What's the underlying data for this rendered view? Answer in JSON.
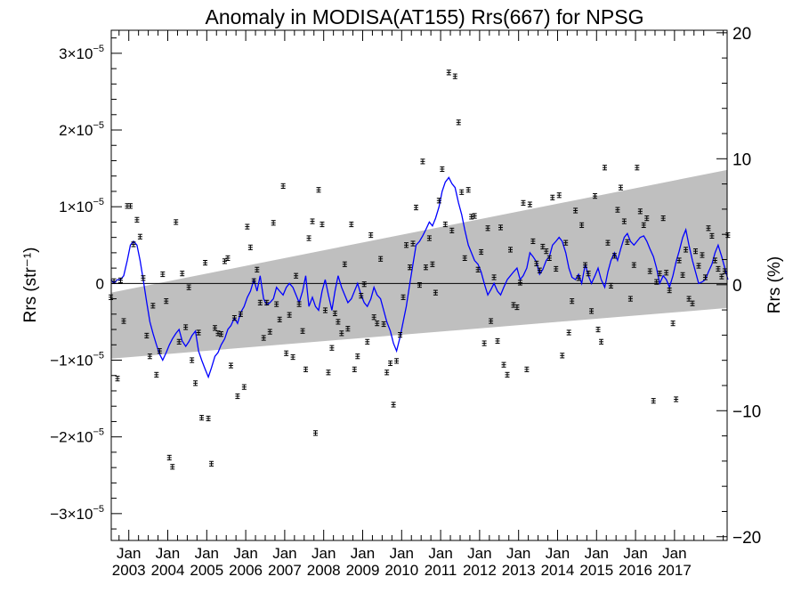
{
  "chart_data": {
    "type": "scatter",
    "title": "Anomaly in MODISA(AT155) Rrs(667) for NPSG",
    "ylabel_left": "Rrs (str⁻¹)",
    "ylabel_right": "Rrs (%)",
    "xlabel": "",
    "x_ticks": [
      {
        "top": "Jan",
        "bottom": "2003"
      },
      {
        "top": "Jan",
        "bottom": "2004"
      },
      {
        "top": "Jan",
        "bottom": "2005"
      },
      {
        "top": "Jan",
        "bottom": "2006"
      },
      {
        "top": "Jan",
        "bottom": "2007"
      },
      {
        "top": "Jan",
        "bottom": "2008"
      },
      {
        "top": "Jan",
        "bottom": "2009"
      },
      {
        "top": "Jan",
        "bottom": "2010"
      },
      {
        "top": "Jan",
        "bottom": "2011"
      },
      {
        "top": "Jan",
        "bottom": "2012"
      },
      {
        "top": "Jan",
        "bottom": "2013"
      },
      {
        "top": "Jan",
        "bottom": "2014"
      },
      {
        "top": "Jan",
        "bottom": "2015"
      },
      {
        "top": "Jan",
        "bottom": "2016"
      },
      {
        "top": "Jan",
        "bottom": "2017"
      }
    ],
    "x_range": [
      2002.55,
      2018.35
    ],
    "y_left_range": [
      -3.35e-05,
      3.3e-05
    ],
    "y_left_ticks": [
      {
        "value": 3e-05,
        "mant": "3×10",
        "exp": "−5"
      },
      {
        "value": 2e-05,
        "mant": "2×10",
        "exp": "−5"
      },
      {
        "value": 1e-05,
        "mant": "1×10",
        "exp": "−5"
      },
      {
        "value": 0,
        "mant": "0",
        "exp": ""
      },
      {
        "value": -1e-05,
        "mant": "−1×10",
        "exp": "−5"
      },
      {
        "value": -2e-05,
        "mant": "−2×10",
        "exp": "−5"
      },
      {
        "value": -3e-05,
        "mant": "−3×10",
        "exp": "−5"
      }
    ],
    "y_right_range": [
      -20.3,
      20.2
    ],
    "y_right_ticks": [
      {
        "value": 20,
        "label": "20"
      },
      {
        "value": 10,
        "label": "10"
      },
      {
        "value": 0,
        "label": "0"
      },
      {
        "value": -10,
        "label": "−10"
      },
      {
        "value": -20,
        "label": "−20"
      }
    ],
    "grid": false,
    "legend": "none",
    "colors": {
      "points": "#000000",
      "line": "#0000ff",
      "band": "#bfbfbf",
      "zero_line": "#000000"
    },
    "band": {
      "x": [
        2002.55,
        2018.35
      ],
      "upper": [
        -1.2e-06,
        1.48e-05
      ],
      "lower": [
        -9.8e-06,
        -3.2e-06
      ]
    },
    "series": [
      {
        "kind": "monthly_anomaly_points_with_error_bars",
        "x": [
          2002.54,
          2002.62,
          2002.71,
          2002.79,
          2002.87,
          2002.96,
          2003.04,
          2003.12,
          2003.21,
          2003.29,
          2003.37,
          2003.46,
          2003.54,
          2003.62,
          2003.71,
          2003.79,
          2003.87,
          2003.96,
          2004.04,
          2004.12,
          2004.21,
          2004.29,
          2004.37,
          2004.46,
          2004.54,
          2004.62,
          2004.71,
          2004.79,
          2004.87,
          2004.96,
          2005.04,
          2005.12,
          2005.21,
          2005.29,
          2005.37,
          2005.46,
          2005.54,
          2005.62,
          2005.71,
          2005.79,
          2005.87,
          2005.96,
          2006.04,
          2006.12,
          2006.21,
          2006.29,
          2006.37,
          2006.46,
          2006.54,
          2006.62,
          2006.71,
          2006.79,
          2006.87,
          2006.96,
          2007.04,
          2007.12,
          2007.21,
          2007.29,
          2007.37,
          2007.46,
          2007.54,
          2007.62,
          2007.71,
          2007.79,
          2007.87,
          2007.96,
          2008.04,
          2008.12,
          2008.21,
          2008.29,
          2008.37,
          2008.46,
          2008.54,
          2008.62,
          2008.71,
          2008.79,
          2008.87,
          2008.96,
          2009.04,
          2009.12,
          2009.21,
          2009.29,
          2009.37,
          2009.46,
          2009.54,
          2009.62,
          2009.71,
          2009.79,
          2009.87,
          2009.96,
          2010.04,
          2010.12,
          2010.21,
          2010.29,
          2010.37,
          2010.46,
          2010.54,
          2010.62,
          2010.71,
          2010.79,
          2010.87,
          2010.96,
          2011.04,
          2011.12,
          2011.21,
          2011.29,
          2011.37,
          2011.46,
          2011.54,
          2011.62,
          2011.71,
          2011.79,
          2011.87,
          2011.96,
          2012.04,
          2012.12,
          2012.21,
          2012.29,
          2012.37,
          2012.46,
          2012.54,
          2012.62,
          2012.71,
          2012.79,
          2012.87,
          2012.96,
          2013.04,
          2013.12,
          2013.21,
          2013.29,
          2013.37,
          2013.46,
          2013.54,
          2013.62,
          2013.71,
          2013.79,
          2013.87,
          2013.96,
          2014.04,
          2014.12,
          2014.21,
          2014.29,
          2014.37,
          2014.46,
          2014.54,
          2014.62,
          2014.71,
          2014.79,
          2014.87,
          2014.96,
          2015.04,
          2015.12,
          2015.21,
          2015.29,
          2015.37,
          2015.46,
          2015.54,
          2015.62,
          2015.71,
          2015.79,
          2015.87,
          2015.96,
          2016.04,
          2016.12,
          2016.21,
          2016.29,
          2016.37,
          2016.46,
          2016.54,
          2016.62,
          2016.71,
          2016.79,
          2016.87,
          2016.96,
          2017.04,
          2017.12,
          2017.21,
          2017.29,
          2017.37,
          2017.46,
          2017.54,
          2017.62,
          2017.71,
          2017.79,
          2017.87,
          2017.96,
          2018.04,
          2018.12,
          2018.21,
          2018.29,
          2018.37
        ],
        "y": [
          -0.18,
          0.03,
          -1.24,
          0.04,
          -0.49,
          1.01,
          1.01,
          0.51,
          0.83,
          0.61,
          0.07,
          -0.68,
          -0.95,
          -0.29,
          -1.19,
          -0.88,
          0.12,
          -0.23,
          -2.27,
          -2.39,
          0.8,
          -0.76,
          0.13,
          -0.57,
          -0.05,
          -1.0,
          -1.3,
          -0.64,
          -1.75,
          0.27,
          -1.76,
          -2.35,
          -0.58,
          -0.65,
          -0.66,
          0.29,
          0.33,
          -1.07,
          -0.45,
          -1.47,
          -0.4,
          -1.35,
          0.74,
          0.47,
          0.03,
          0.18,
          -0.25,
          -0.71,
          -0.25,
          -0.63,
          0.79,
          -0.27,
          -0.47,
          1.27,
          -0.91,
          -0.41,
          -0.96,
          0.1,
          -0.27,
          -0.62,
          -1.12,
          0.59,
          0.81,
          -1.95,
          1.22,
          0.77,
          -0.35,
          -1.16,
          -0.84,
          -0.39,
          -0.5,
          -0.65,
          0.25,
          -0.59,
          0.77,
          -1.12,
          -0.95,
          -0.16,
          -0.01,
          -0.76,
          0.63,
          -0.44,
          -0.52,
          0.32,
          -0.53,
          -1.16,
          -1.04,
          -1.58,
          -1.01,
          -0.67,
          -0.18,
          0.5,
          0.21,
          0.52,
          0.99,
          -0.02,
          1.59,
          0.21,
          0.59,
          0.25,
          -0.12,
          1.08,
          1.49,
          0.77,
          2.75,
          0.69,
          2.7,
          2.1,
          1.19,
          0.33,
          1.22,
          0.87,
          0.88,
          0.18,
          0.41,
          -0.78,
          0.72,
          -0.49,
          0.08,
          -0.75,
          0.73,
          -1.06,
          -1.19,
          0.44,
          -0.28,
          -0.31,
          0.01,
          1.05,
          -1.12,
          1.03,
          0.55,
          0.26,
          0.17,
          0.48,
          0.42,
          0.33,
          1.12,
          0.19,
          1.15,
          -0.94,
          0.53,
          -0.64,
          -0.23,
          0.95,
          0.07,
          0.76,
          0.24,
          0.13,
          -0.36,
          1.14,
          -0.6,
          -0.76,
          1.51,
          0.53,
          -0.03,
          0.36,
          0.96,
          1.25,
          0.81,
          0.54,
          -0.2,
          0.24,
          1.51,
          0.94,
          0.76,
          0.85,
          0.16,
          -1.53,
          0.02,
          0.13,
          0.85,
          0.14,
          -0.09,
          -0.52,
          -1.51,
          0.3,
          0.11,
          0.44,
          -0.2,
          -0.26,
          0.42,
          0.23,
          0.37,
          0.08,
          0.72,
          0.62,
          0.3,
          0.19,
          0.09,
          0.16,
          0.63
        ],
        "y_scale": 1e-05,
        "error": 0.03
      },
      {
        "kind": "smoothed_line",
        "x": [
          2002.54,
          2002.62,
          2002.71,
          2002.79,
          2002.87,
          2002.96,
          2003.04,
          2003.12,
          2003.21,
          2003.29,
          2003.37,
          2003.46,
          2003.54,
          2003.62,
          2003.71,
          2003.79,
          2003.87,
          2003.96,
          2004.04,
          2004.12,
          2004.21,
          2004.29,
          2004.37,
          2004.46,
          2004.54,
          2004.62,
          2004.71,
          2004.79,
          2004.87,
          2004.96,
          2005.04,
          2005.12,
          2005.21,
          2005.29,
          2005.37,
          2005.46,
          2005.54,
          2005.62,
          2005.71,
          2005.79,
          2005.87,
          2005.96,
          2006.04,
          2006.12,
          2006.21,
          2006.29,
          2006.37,
          2006.46,
          2006.54,
          2006.62,
          2006.71,
          2006.79,
          2006.87,
          2006.96,
          2007.04,
          2007.12,
          2007.21,
          2007.29,
          2007.37,
          2007.46,
          2007.54,
          2007.62,
          2007.71,
          2007.79,
          2007.87,
          2007.96,
          2008.04,
          2008.12,
          2008.21,
          2008.29,
          2008.37,
          2008.46,
          2008.54,
          2008.62,
          2008.71,
          2008.79,
          2008.87,
          2008.96,
          2009.04,
          2009.12,
          2009.21,
          2009.29,
          2009.37,
          2009.46,
          2009.54,
          2009.62,
          2009.71,
          2009.79,
          2009.87,
          2009.96,
          2010.04,
          2010.12,
          2010.21,
          2010.29,
          2010.37,
          2010.46,
          2010.54,
          2010.62,
          2010.71,
          2010.79,
          2010.87,
          2010.96,
          2011.04,
          2011.12,
          2011.21,
          2011.29,
          2011.37,
          2011.46,
          2011.54,
          2011.62,
          2011.71,
          2011.79,
          2011.87,
          2011.96,
          2012.04,
          2012.12,
          2012.21,
          2012.29,
          2012.37,
          2012.46,
          2012.54,
          2012.62,
          2012.71,
          2012.79,
          2012.87,
          2012.96,
          2013.04,
          2013.12,
          2013.21,
          2013.29,
          2013.37,
          2013.46,
          2013.54,
          2013.62,
          2013.71,
          2013.79,
          2013.87,
          2013.96,
          2014.04,
          2014.12,
          2014.21,
          2014.29,
          2014.37,
          2014.46,
          2014.54,
          2014.62,
          2014.71,
          2014.79,
          2014.87,
          2014.96,
          2015.04,
          2015.12,
          2015.21,
          2015.29,
          2015.37,
          2015.46,
          2015.54,
          2015.62,
          2015.71,
          2015.79,
          2015.87,
          2015.96,
          2016.04,
          2016.12,
          2016.21,
          2016.29,
          2016.37,
          2016.46,
          2016.54,
          2016.62,
          2016.71,
          2016.79,
          2016.87,
          2016.96,
          2017.04,
          2017.12,
          2017.21,
          2017.29,
          2017.37,
          2017.46,
          2017.54,
          2017.62,
          2017.71,
          2017.79,
          2017.87,
          2017.96,
          2018.04,
          2018.12,
          2018.21,
          2018.29,
          2018.37
        ],
        "y": [
          0.05,
          0.0,
          0.05,
          0.05,
          0.1,
          0.3,
          0.5,
          0.55,
          0.5,
          0.3,
          0.05,
          -0.25,
          -0.5,
          -0.65,
          -0.8,
          -0.92,
          -1.0,
          -0.9,
          -0.8,
          -0.72,
          -0.65,
          -0.6,
          -0.75,
          -0.82,
          -0.76,
          -0.68,
          -0.62,
          -0.88,
          -1.0,
          -1.12,
          -1.22,
          -1.1,
          -0.95,
          -0.9,
          -0.8,
          -0.72,
          -0.6,
          -0.55,
          -0.45,
          -0.52,
          -0.38,
          -0.3,
          -0.18,
          -0.1,
          0.05,
          -0.1,
          0.1,
          -0.2,
          -0.28,
          -0.25,
          -0.2,
          -0.05,
          -0.1,
          -0.15,
          -0.05,
          0.0,
          -0.05,
          -0.15,
          -0.25,
          -0.1,
          0.1,
          -0.3,
          -0.18,
          -0.3,
          -0.35,
          -0.1,
          0.05,
          -0.15,
          -0.35,
          -0.1,
          0.1,
          -0.05,
          -0.15,
          -0.25,
          -0.2,
          -0.1,
          0.0,
          -0.15,
          -0.25,
          -0.3,
          -0.2,
          -0.05,
          -0.15,
          -0.2,
          -0.35,
          -0.5,
          -0.62,
          -0.78,
          -0.88,
          -0.7,
          -0.5,
          -0.3,
          0.0,
          0.25,
          0.5,
          0.55,
          0.62,
          0.7,
          0.8,
          0.75,
          0.85,
          1.0,
          1.2,
          1.32,
          1.38,
          1.3,
          1.25,
          1.05,
          0.9,
          0.7,
          0.5,
          0.4,
          0.3,
          0.25,
          0.15,
          0.0,
          -0.15,
          -0.08,
          0.0,
          -0.1,
          -0.15,
          -0.05,
          0.05,
          0.1,
          0.15,
          0.2,
          0.05,
          0.1,
          0.2,
          0.4,
          0.35,
          0.28,
          0.12,
          0.18,
          0.3,
          0.35,
          0.5,
          0.55,
          0.6,
          0.55,
          0.4,
          0.2,
          0.08,
          0.05,
          0.12,
          0.0,
          0.25,
          0.1,
          0.0,
          0.1,
          0.2,
          0.05,
          -0.05,
          0.15,
          0.3,
          0.4,
          0.3,
          0.45,
          0.6,
          0.65,
          0.55,
          0.5,
          0.55,
          0.6,
          0.62,
          0.55,
          0.45,
          0.35,
          0.2,
          0.0,
          0.1,
          0.05,
          -0.05,
          0.1,
          0.28,
          0.42,
          0.6,
          0.7,
          0.5,
          0.3,
          0.15,
          0.0,
          0.02,
          0.05,
          0.15,
          0.25,
          0.4,
          0.5,
          0.35,
          0.2,
          0.05
        ],
        "y_scale": 1e-05
      }
    ]
  }
}
